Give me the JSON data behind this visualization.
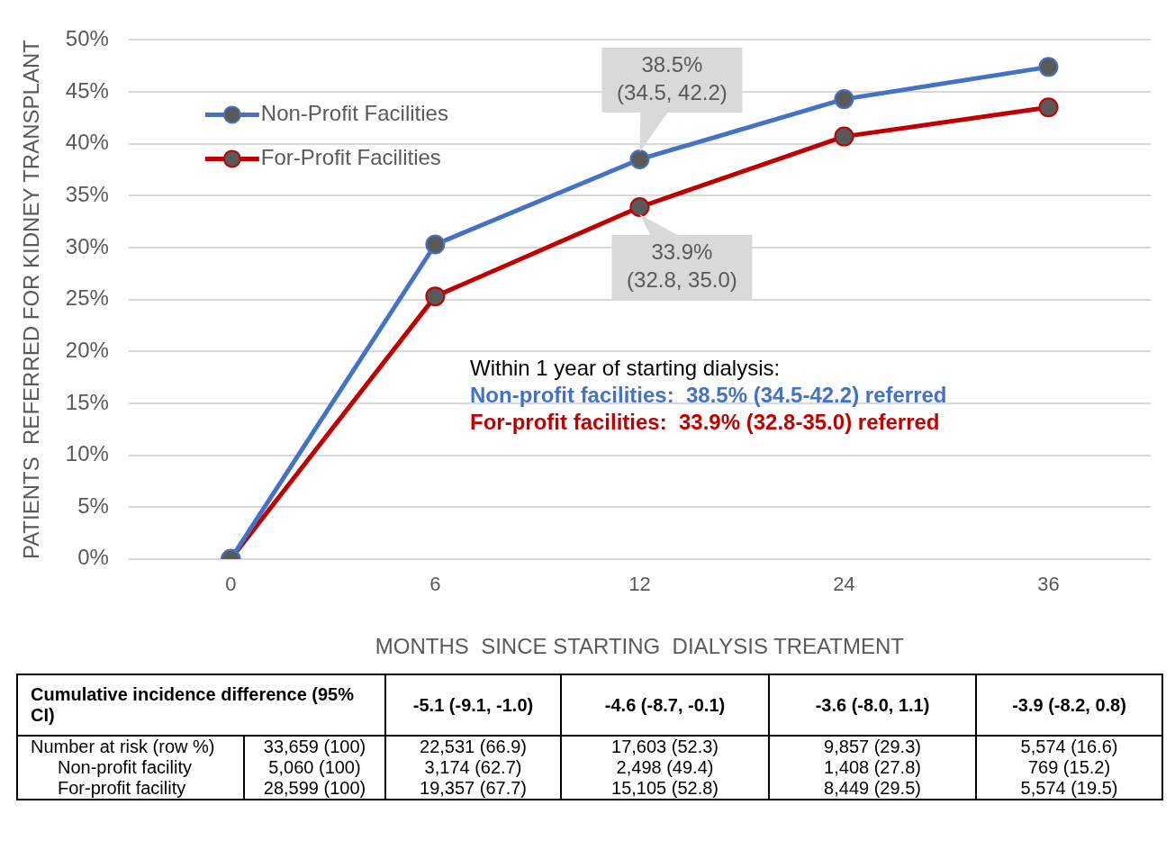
{
  "chart_data": {
    "type": "line",
    "ylabel": "PATIENTS  REFERRED FOR KIDNEY TRANSPLANT",
    "xlabel": "MONTHS  SINCE STARTING  DIALYSIS TREATMENT",
    "categories": [
      "0",
      "6",
      "12",
      "24",
      "36"
    ],
    "series": [
      {
        "name": "Non-Profit Facilities",
        "color": "#4472c4",
        "values": [
          0,
          30.3,
          38.5,
          44.3,
          47.4
        ]
      },
      {
        "name": "For-Profit Facilities",
        "color": "#c00000",
        "values": [
          0,
          25.3,
          33.9,
          40.7,
          43.5
        ]
      }
    ],
    "ylim": [
      0,
      50
    ],
    "yticks": [
      {
        "value": 0,
        "label": "0%"
      },
      {
        "value": 5,
        "label": "5%"
      },
      {
        "value": 10,
        "label": "10%"
      },
      {
        "value": 15,
        "label": "15%"
      },
      {
        "value": 20,
        "label": "20%"
      },
      {
        "value": 25,
        "label": "25%"
      },
      {
        "value": 30,
        "label": "30%"
      },
      {
        "value": 35,
        "label": "35%"
      },
      {
        "value": 40,
        "label": "40%"
      },
      {
        "value": 45,
        "label": "45%"
      },
      {
        "value": 50,
        "label": "50%"
      }
    ],
    "grid": "y",
    "legend": "top left",
    "marker": "circle",
    "line_style": "solid",
    "annotations": [
      {
        "text": "38.5%\n(34.5, 42.2)",
        "x": "12",
        "y": 38.5
      },
      {
        "text": "33.9%\n(32.8, 35.0)",
        "x": "12",
        "y": 33.9
      },
      "Within 1 year of starting dialysis:",
      "Non-profit facilities:  38.5% (34.5-42.2) referred",
      "For-profit facilities:  33.9% (32.8-35.0) referred",
      "Cumulative incidence difference (95% CI)\t-5.1 (-9.1, -1.0)\t-4.6 (-8.7, -0.1)\t-3.6 (-8.0, 1.1)\t-3.9  (-8.2, 0.8)",
      "Number at risk (row %)\t33,659 (100)\t22,531 (66.9)\t17,603 (52.3)\t9,857 (29.3)\t5,574 (16.6)",
      "Non-profit facility\t5,060 (100)\t3,174 (62.7)\t2,498 (49.4)\t1,408 (27.8)\t769 (15.2)",
      "For-profit facility\t28,599 (100)\t19,357 (67.7)\t15,105 (52.8)\t8,449 (29.5)\t5,574 (19.5)"
    ]
  }
}
